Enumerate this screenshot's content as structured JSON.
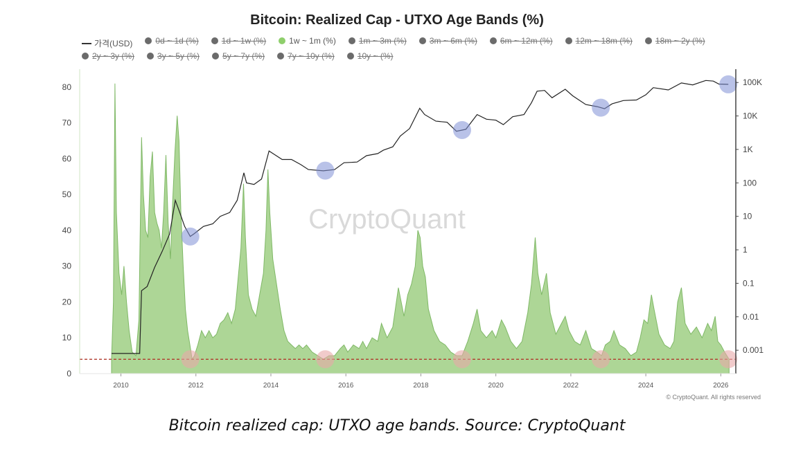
{
  "title": "Bitcoin: Realized Cap - UTXO Age Bands (%)",
  "legend": [
    {
      "label": "가격(USD)",
      "style": "line",
      "active": true
    },
    {
      "label": "0d ~ 1d (%)",
      "style": "dot",
      "active": false
    },
    {
      "label": "1d ~ 1w (%)",
      "style": "dot",
      "active": false
    },
    {
      "label": "1w ~ 1m (%)",
      "style": "dot",
      "active": true
    },
    {
      "label": "1m ~ 3m (%)",
      "style": "dot",
      "active": false
    },
    {
      "label": "3m ~ 6m (%)",
      "style": "dot",
      "active": false
    },
    {
      "label": "6m ~ 12m (%)",
      "style": "dot",
      "active": false
    },
    {
      "label": "12m ~ 18m (%)",
      "style": "dot",
      "active": false
    },
    {
      "label": "18m ~ 2y (%)",
      "style": "dot",
      "active": false
    },
    {
      "label": "2y ~ 3y (%)",
      "style": "dot",
      "active": false
    },
    {
      "label": "3y ~ 5y (%)",
      "style": "dot",
      "active": false
    },
    {
      "label": "5y ~ 7y (%)",
      "style": "dot",
      "active": false
    },
    {
      "label": "7y ~ 10y (%)",
      "style": "dot",
      "active": false
    },
    {
      "label": "10y ~ (%)",
      "style": "dot",
      "active": false
    }
  ],
  "watermark": "CryptoQuant",
  "copyright": "© CryptoQuant. All rights reserved",
  "caption": "Bitcoin realized cap: UTXO age bands. Source: CryptoQuant",
  "colors": {
    "band_fill": "#9fcf84",
    "band_stroke": "#7fb866",
    "price_line": "#222222",
    "threshold_line": "#b03a2e",
    "top_marker": "#7f8fd6",
    "bottom_marker": "#e8a9a9",
    "axis": "#444444"
  },
  "chart_data": {
    "type": "area",
    "x_ticks": [
      "2010",
      "2012",
      "2014",
      "2016",
      "2018",
      "2020",
      "2022",
      "2024",
      "2026"
    ],
    "xlim": [
      2008.9,
      2026.4
    ],
    "y_left_ticks": [
      "0",
      "10",
      "20",
      "30",
      "40",
      "50",
      "60",
      "70",
      "80"
    ],
    "ylim_left": [
      0,
      85
    ],
    "y_right_ticks": [
      "0.001",
      "0.01",
      "0.1",
      "1",
      "10",
      "100",
      "1K",
      "10K",
      "100K"
    ],
    "ylim_right_log": [
      0.0002,
      250000
    ],
    "right_axis_scale": "log",
    "grid": false,
    "threshold_value": 4,
    "series": [
      {
        "name": "1w ~ 1m (%)",
        "axis": "left",
        "points": [
          [
            2009.75,
            4
          ],
          [
            2009.8,
            20
          ],
          [
            2009.84,
            81
          ],
          [
            2009.88,
            45
          ],
          [
            2009.95,
            28
          ],
          [
            2010.02,
            22
          ],
          [
            2010.08,
            30
          ],
          [
            2010.15,
            20
          ],
          [
            2010.22,
            12
          ],
          [
            2010.3,
            6
          ],
          [
            2010.4,
            5
          ],
          [
            2010.48,
            15
          ],
          [
            2010.55,
            66
          ],
          [
            2010.6,
            50
          ],
          [
            2010.66,
            40
          ],
          [
            2010.72,
            38
          ],
          [
            2010.78,
            55
          ],
          [
            2010.84,
            62
          ],
          [
            2010.9,
            45
          ],
          [
            2010.96,
            42
          ],
          [
            2011.02,
            40
          ],
          [
            2011.08,
            35
          ],
          [
            2011.14,
            45
          ],
          [
            2011.2,
            61
          ],
          [
            2011.26,
            42
          ],
          [
            2011.32,
            32
          ],
          [
            2011.38,
            48
          ],
          [
            2011.44,
            62
          ],
          [
            2011.5,
            72
          ],
          [
            2011.55,
            65
          ],
          [
            2011.6,
            45
          ],
          [
            2011.66,
            30
          ],
          [
            2011.72,
            18
          ],
          [
            2011.78,
            12
          ],
          [
            2011.84,
            8
          ],
          [
            2011.9,
            4
          ],
          [
            2011.96,
            5
          ],
          [
            2012.05,
            8
          ],
          [
            2012.15,
            12
          ],
          [
            2012.25,
            10
          ],
          [
            2012.35,
            12
          ],
          [
            2012.45,
            10
          ],
          [
            2012.55,
            11
          ],
          [
            2012.65,
            14
          ],
          [
            2012.75,
            15
          ],
          [
            2012.85,
            17
          ],
          [
            2012.95,
            14
          ],
          [
            2013.05,
            18
          ],
          [
            2013.12,
            26
          ],
          [
            2013.2,
            35
          ],
          [
            2013.27,
            53
          ],
          [
            2013.32,
            38
          ],
          [
            2013.4,
            22
          ],
          [
            2013.5,
            18
          ],
          [
            2013.6,
            16
          ],
          [
            2013.7,
            22
          ],
          [
            2013.8,
            28
          ],
          [
            2013.87,
            40
          ],
          [
            2013.92,
            57
          ],
          [
            2013.97,
            45
          ],
          [
            2014.05,
            32
          ],
          [
            2014.15,
            25
          ],
          [
            2014.25,
            18
          ],
          [
            2014.35,
            12
          ],
          [
            2014.45,
            9
          ],
          [
            2014.55,
            8
          ],
          [
            2014.65,
            7
          ],
          [
            2014.75,
            8
          ],
          [
            2014.85,
            7
          ],
          [
            2014.95,
            8
          ],
          [
            2015.1,
            6
          ],
          [
            2015.25,
            5
          ],
          [
            2015.4,
            4
          ],
          [
            2015.55,
            5
          ],
          [
            2015.7,
            5
          ],
          [
            2015.85,
            7
          ],
          [
            2015.95,
            8
          ],
          [
            2016.05,
            6
          ],
          [
            2016.2,
            8
          ],
          [
            2016.35,
            7
          ],
          [
            2016.45,
            9
          ],
          [
            2016.55,
            7
          ],
          [
            2016.7,
            10
          ],
          [
            2016.85,
            9
          ],
          [
            2016.95,
            14
          ],
          [
            2017.1,
            10
          ],
          [
            2017.25,
            13
          ],
          [
            2017.4,
            24
          ],
          [
            2017.55,
            16
          ],
          [
            2017.65,
            22
          ],
          [
            2017.75,
            25
          ],
          [
            2017.85,
            30
          ],
          [
            2017.92,
            40
          ],
          [
            2017.98,
            38
          ],
          [
            2018.05,
            30
          ],
          [
            2018.12,
            27
          ],
          [
            2018.2,
            18
          ],
          [
            2018.35,
            12
          ],
          [
            2018.5,
            9
          ],
          [
            2018.65,
            8
          ],
          [
            2018.8,
            6
          ],
          [
            2018.95,
            5
          ],
          [
            2019.1,
            5
          ],
          [
            2019.25,
            9
          ],
          [
            2019.4,
            14
          ],
          [
            2019.5,
            18
          ],
          [
            2019.6,
            12
          ],
          [
            2019.75,
            10
          ],
          [
            2019.9,
            12
          ],
          [
            2020.0,
            10
          ],
          [
            2020.15,
            15
          ],
          [
            2020.25,
            13
          ],
          [
            2020.4,
            9
          ],
          [
            2020.55,
            7
          ],
          [
            2020.7,
            9
          ],
          [
            2020.85,
            17
          ],
          [
            2020.95,
            25
          ],
          [
            2021.05,
            38
          ],
          [
            2021.12,
            28
          ],
          [
            2021.22,
            22
          ],
          [
            2021.35,
            28
          ],
          [
            2021.45,
            17
          ],
          [
            2021.6,
            11
          ],
          [
            2021.75,
            14
          ],
          [
            2021.85,
            16
          ],
          [
            2021.95,
            12
          ],
          [
            2022.1,
            9
          ],
          [
            2022.25,
            8
          ],
          [
            2022.4,
            12
          ],
          [
            2022.55,
            7
          ],
          [
            2022.7,
            6
          ],
          [
            2022.82,
            5
          ],
          [
            2022.92,
            8
          ],
          [
            2023.05,
            9
          ],
          [
            2023.15,
            12
          ],
          [
            2023.3,
            8
          ],
          [
            2023.45,
            7
          ],
          [
            2023.6,
            5
          ],
          [
            2023.75,
            6
          ],
          [
            2023.85,
            10
          ],
          [
            2023.95,
            15
          ],
          [
            2024.05,
            14
          ],
          [
            2024.15,
            22
          ],
          [
            2024.22,
            18
          ],
          [
            2024.35,
            11
          ],
          [
            2024.5,
            8
          ],
          [
            2024.65,
            7
          ],
          [
            2024.75,
            9
          ],
          [
            2024.85,
            20
          ],
          [
            2024.95,
            24
          ],
          [
            2025.05,
            14
          ],
          [
            2025.2,
            11
          ],
          [
            2025.35,
            13
          ],
          [
            2025.5,
            10
          ],
          [
            2025.65,
            14
          ],
          [
            2025.75,
            12
          ],
          [
            2025.85,
            16
          ],
          [
            2025.92,
            9
          ],
          [
            2026.0,
            8
          ],
          [
            2026.1,
            6
          ],
          [
            2026.22,
            4
          ]
        ]
      },
      {
        "name": "가격(USD)",
        "axis": "right",
        "points": [
          [
            2009.75,
            0.0008
          ],
          [
            2009.95,
            0.0008
          ],
          [
            2010.3,
            0.0008
          ],
          [
            2010.5,
            0.0008
          ],
          [
            2010.55,
            0.06
          ],
          [
            2010.7,
            0.08
          ],
          [
            2010.9,
            0.3
          ],
          [
            2011.1,
            0.9
          ],
          [
            2011.3,
            3
          ],
          [
            2011.45,
            30
          ],
          [
            2011.55,
            15
          ],
          [
            2011.7,
            5
          ],
          [
            2011.85,
            2.5
          ],
          [
            2011.95,
            3
          ],
          [
            2012.2,
            5
          ],
          [
            2012.45,
            6
          ],
          [
            2012.65,
            10
          ],
          [
            2012.9,
            13
          ],
          [
            2013.1,
            30
          ],
          [
            2013.28,
            200
          ],
          [
            2013.35,
            100
          ],
          [
            2013.55,
            90
          ],
          [
            2013.75,
            130
          ],
          [
            2013.95,
            900
          ],
          [
            2014.1,
            700
          ],
          [
            2014.3,
            500
          ],
          [
            2014.55,
            500
          ],
          [
            2014.8,
            350
          ],
          [
            2015.0,
            250
          ],
          [
            2015.4,
            230
          ],
          [
            2015.7,
            250
          ],
          [
            2015.95,
            400
          ],
          [
            2016.3,
            420
          ],
          [
            2016.55,
            650
          ],
          [
            2016.85,
            750
          ],
          [
            2017.0,
            950
          ],
          [
            2017.25,
            1200
          ],
          [
            2017.45,
            2500
          ],
          [
            2017.7,
            4200
          ],
          [
            2017.97,
            17000
          ],
          [
            2018.1,
            11000
          ],
          [
            2018.4,
            7000
          ],
          [
            2018.7,
            6500
          ],
          [
            2018.95,
            3500
          ],
          [
            2019.2,
            4000
          ],
          [
            2019.5,
            11000
          ],
          [
            2019.75,
            8000
          ],
          [
            2020.0,
            7500
          ],
          [
            2020.2,
            5500
          ],
          [
            2020.45,
            9500
          ],
          [
            2020.75,
            11000
          ],
          [
            2020.95,
            25000
          ],
          [
            2021.1,
            55000
          ],
          [
            2021.3,
            58000
          ],
          [
            2021.5,
            35000
          ],
          [
            2021.85,
            63000
          ],
          [
            2022.05,
            40000
          ],
          [
            2022.4,
            22000
          ],
          [
            2022.7,
            19000
          ],
          [
            2022.9,
            16500
          ],
          [
            2023.1,
            23000
          ],
          [
            2023.4,
            29000
          ],
          [
            2023.75,
            30000
          ],
          [
            2024.0,
            43000
          ],
          [
            2024.2,
            70000
          ],
          [
            2024.6,
            60000
          ],
          [
            2024.95,
            97000
          ],
          [
            2025.25,
            85000
          ],
          [
            2025.6,
            115000
          ],
          [
            2025.8,
            110000
          ],
          [
            2025.95,
            90000
          ],
          [
            2026.2,
            88000
          ]
        ]
      }
    ],
    "tops": [
      2011.85,
      2015.45,
      2019.1,
      2022.8,
      2026.2
    ],
    "bottoms": [
      2011.85,
      2015.45,
      2019.1,
      2022.8,
      2026.2
    ]
  }
}
